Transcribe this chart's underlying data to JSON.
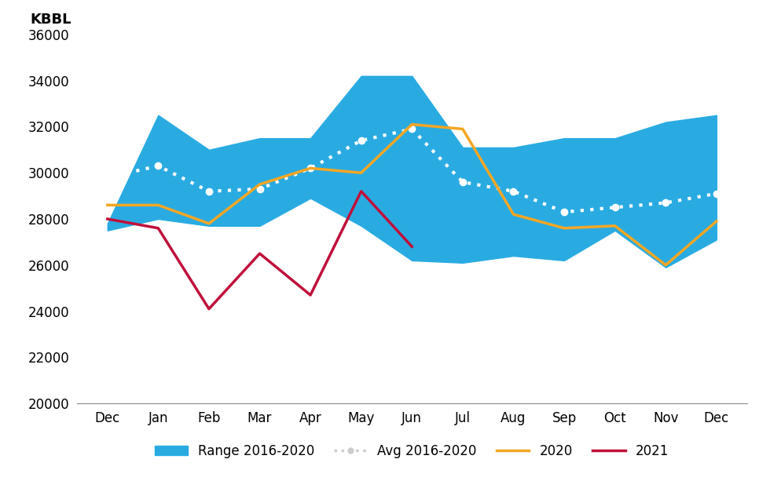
{
  "months": [
    "Dec",
    "Jan",
    "Feb",
    "Mar",
    "Apr",
    "May",
    "Jun",
    "Jul",
    "Aug",
    "Sep",
    "Oct",
    "Nov",
    "Dec"
  ],
  "range_low": [
    27500,
    28000,
    27700,
    27700,
    28900,
    27700,
    26200,
    26100,
    26400,
    26200,
    27500,
    25900,
    27100
  ],
  "range_high": [
    27800,
    32500,
    31000,
    31500,
    31500,
    34200,
    34200,
    31100,
    31100,
    31500,
    31500,
    32200,
    32500
  ],
  "avg_2016_2020": [
    29800,
    30300,
    29200,
    29300,
    30200,
    31400,
    31900,
    29600,
    29200,
    28300,
    28500,
    28700,
    29100
  ],
  "line_2020": [
    28600,
    28600,
    27800,
    29500,
    30200,
    30000,
    32100,
    31900,
    28200,
    27600,
    27700,
    26000,
    27900
  ],
  "line_2021": [
    28000,
    27600,
    24100,
    26500,
    24700,
    29200,
    26800,
    null,
    null,
    null,
    null,
    null,
    null
  ],
  "ylim": [
    20000,
    36000
  ],
  "yticks": [
    20000,
    22000,
    24000,
    26000,
    28000,
    30000,
    32000,
    34000,
    36000
  ],
  "ylabel_text": "KBBL",
  "range_color": "#29ABE2",
  "avg_color": "#FFFFFF",
  "avg_legend_color": "#CCCCCC",
  "line_2020_color": "#F5A623",
  "line_2021_color": "#C0103A",
  "background_color": "#FFFFFF",
  "legend_labels": [
    "Range 2016-2020",
    "Avg 2016-2020",
    "2020",
    "2021"
  ]
}
